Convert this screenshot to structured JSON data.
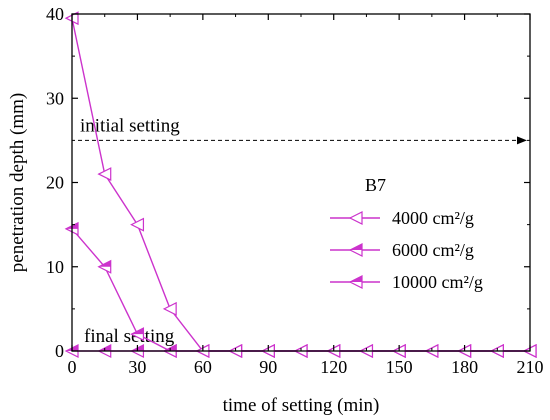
{
  "chart_data": {
    "type": "line",
    "title": "",
    "xlabel": "time of setting (min)",
    "ylabel": "penetration depth (mm)",
    "xlim": [
      0,
      210
    ],
    "ylim": [
      0,
      40
    ],
    "xticks": [
      0,
      30,
      60,
      90,
      120,
      150,
      180,
      210
    ],
    "yticks": [
      0,
      10,
      20,
      30,
      40
    ],
    "grid": false,
    "legend": {
      "title": "B7",
      "placement": "center-right",
      "entries": [
        "4000 cm²/g",
        "6000 cm²/g",
        "10000 cm²/g"
      ]
    },
    "series": [
      {
        "name": "4000 cm²/g",
        "color": "#cc33cc",
        "marker": "triangle-left-open",
        "x": [
          0,
          15,
          30,
          45,
          60,
          75,
          90,
          105,
          120,
          135,
          150,
          165,
          180,
          195,
          210
        ],
        "y": [
          39.5,
          21,
          15,
          5,
          0,
          0,
          0,
          0,
          0,
          0,
          0,
          0,
          0,
          0,
          0
        ]
      },
      {
        "name": "6000 cm²/g",
        "color": "#cc33cc",
        "marker": "triangle-left-half",
        "x": [
          0,
          15,
          30,
          45,
          60,
          75,
          90,
          105,
          120,
          135,
          150,
          165,
          180,
          195,
          210
        ],
        "y": [
          14.5,
          10,
          2,
          0,
          0,
          0,
          0,
          0,
          0,
          0,
          0,
          0,
          0,
          0,
          0
        ]
      },
      {
        "name": "10000 cm²/g",
        "color": "#cc33cc",
        "marker": "triangle-left-half",
        "x": [
          0,
          15,
          30,
          45,
          60,
          75,
          90,
          105,
          120,
          135,
          150,
          165,
          180,
          195,
          210
        ],
        "y": [
          0,
          0,
          0,
          0,
          0,
          0,
          0,
          0,
          0,
          0,
          0,
          0,
          0,
          0,
          0
        ]
      }
    ],
    "annotations": [
      {
        "text": "initial setting",
        "y": 25,
        "style": "dashed-arrow"
      },
      {
        "text": "final setting",
        "y": 0
      }
    ]
  }
}
